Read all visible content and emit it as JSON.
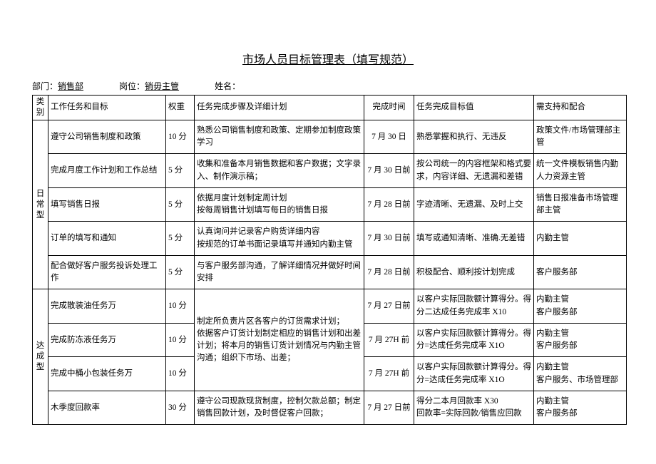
{
  "title": "市场人员目标管理表（填写规范）",
  "header": {
    "dept_label": "部门：",
    "dept_value": "销售部",
    "role_label": "岗位：",
    "role_value": "销毋主管",
    "name_label": "姓名："
  },
  "columns": [
    "类别",
    "工作任务和目标",
    "权重",
    "任务完成步骤及详细计划",
    "完成时间",
    "任务完成目标值",
    "需支持和配合"
  ],
  "groups": [
    {
      "category": "日常型",
      "rows": [
        {
          "task": "遵守公司销售制度和政策",
          "weight": "10 分",
          "plan": "熟悉公司销售制度和政策、定期参加制度政策学习",
          "time": "7 月 30 日",
          "target": "熟悉掌握和执行、无违反",
          "support": "政策文件/市场管理部主管"
        },
        {
          "task": "完成月度工作计划和工作总结",
          "weight": "5 分",
          "plan": "收集和准备本月销售数据和客户数据；文字录入、制作演示稿；",
          "time": "7 月 30 日前",
          "target": "按公司统一的内容框架和格式要求，内容详细、无遗漏和差错",
          "support": "统一文件模板销售内勤人力资源主管"
        },
        {
          "task": "填写销售日报",
          "weight": "5 分",
          "plan": "依据月度计划制定周计划\n按每周销售计划填写每日的销售日报",
          "time": "7 月 28 日前",
          "target": "字迹清晰、无遗漏、及时上交",
          "support": "销售日报准备市场管理部主管"
        },
        {
          "task": "订单的填写和通知",
          "weight": "5 分",
          "plan": "认真询问并记录客户购货详细内容\n按规范的订单书面记录填写并通知内勤主管",
          "time": "7 月 30 日前",
          "target": "填写或通知清晰、准确.无差错",
          "support": "内勤主管"
        },
        {
          "task": "配合做好客户服务投诉处理工作",
          "weight": "5 分",
          "plan": "与客户服务部沟通，了解详细情况并做好时间安排",
          "time": "7 月 28 日前",
          "target": "积极配合、顺利按计划完成",
          "support": "客户服务部"
        }
      ]
    },
    {
      "category": "达成型",
      "merged_plan": "制定所负责片区各客户的订货需求计划；\n依据客户订货计划制定相应的销售计划和出差计划；将本月的销售订货计划情况与内勤主管沟通；组织下市场、出差；",
      "rows": [
        {
          "task": "完成散装油任务万",
          "weight": "10 分",
          "time": "7 月 27 日前",
          "target": "以客户实际回款额计算得分。得分二达成任务完成率 X10",
          "support": "内勤主管\n客户服务部"
        },
        {
          "task": "完成防冻液任务万",
          "weight": "10 分",
          "time": "7 月 27H 前",
          "target": "以客户实际回款额计算得分。得分=达成任务完成率 X1O",
          "support": "内勤主管\n客户服务部"
        },
        {
          "task": "完成中桶小包装任务万",
          "weight": "10 分",
          "time": "7 月 27H 前",
          "target": "以客户实际回款额计算得分。得分=达成任务完成率 X1O",
          "support": "内勤主管\n客户服务、市场管理部"
        },
        {
          "task": "木季度回款率",
          "weight": "30 分",
          "plan": "遵守公司现款现货制度，控制欠款总额；制定销售回款计划，及时督促客户回款；",
          "time": "7 月 27 日前",
          "target": "得分二本月回款率 X30\n回款率=实际回款/销售应回款",
          "support": "内勤主管\n客户服务部"
        }
      ]
    }
  ],
  "style": {
    "background": "#ffffff",
    "border_color": "#000000",
    "text_color": "#000000",
    "title_fontsize": 16,
    "body_fontsize": 11.5
  }
}
